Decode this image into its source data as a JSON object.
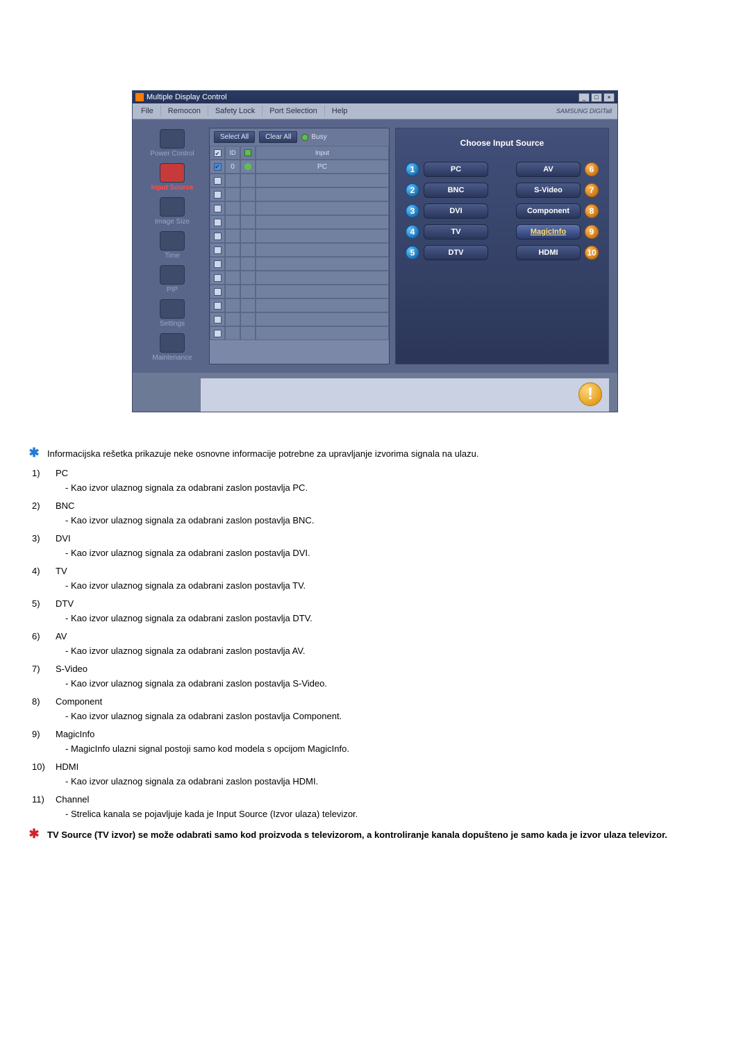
{
  "window": {
    "title": "Multiple Display Control",
    "brand": "SAMSUNG DIGITall"
  },
  "menu": {
    "items": [
      "File",
      "Remocon",
      "Safety Lock",
      "Port Selection",
      "Help"
    ]
  },
  "leftnav": [
    {
      "label": "Power Control",
      "active": false
    },
    {
      "label": "Input Source",
      "active": true
    },
    {
      "label": "Image Size",
      "active": false
    },
    {
      "label": "Time",
      "active": false
    },
    {
      "label": "PIP",
      "active": false
    },
    {
      "label": "Settings",
      "active": false
    },
    {
      "label": "Maintenance",
      "active": false
    }
  ],
  "mid": {
    "select_all": "Select All",
    "clear_all": "Clear All",
    "busy": "Busy",
    "head": {
      "id": "ID",
      "input": "Input"
    },
    "rows": [
      {
        "checked": true,
        "id": "0",
        "status": "green",
        "input": "PC"
      },
      {
        "checked": false,
        "id": "",
        "status": "",
        "input": ""
      },
      {
        "checked": false,
        "id": "",
        "status": "",
        "input": ""
      },
      {
        "checked": false,
        "id": "",
        "status": "",
        "input": ""
      },
      {
        "checked": false,
        "id": "",
        "status": "",
        "input": ""
      },
      {
        "checked": false,
        "id": "",
        "status": "",
        "input": ""
      },
      {
        "checked": false,
        "id": "",
        "status": "",
        "input": ""
      },
      {
        "checked": false,
        "id": "",
        "status": "",
        "input": ""
      },
      {
        "checked": false,
        "id": "",
        "status": "",
        "input": ""
      },
      {
        "checked": false,
        "id": "",
        "status": "",
        "input": ""
      },
      {
        "checked": false,
        "id": "",
        "status": "",
        "input": ""
      },
      {
        "checked": false,
        "id": "",
        "status": "",
        "input": ""
      },
      {
        "checked": false,
        "id": "",
        "status": "",
        "input": ""
      }
    ]
  },
  "right": {
    "title": "Choose Input Source",
    "sources_left": [
      {
        "n": "1",
        "label": "PC"
      },
      {
        "n": "2",
        "label": "BNC"
      },
      {
        "n": "3",
        "label": "DVI"
      },
      {
        "n": "4",
        "label": "TV"
      },
      {
        "n": "5",
        "label": "DTV"
      }
    ],
    "sources_right": [
      {
        "n": "6",
        "label": "AV"
      },
      {
        "n": "7",
        "label": "S-Video"
      },
      {
        "n": "8",
        "label": "Component"
      },
      {
        "n": "9",
        "label": "MagicInfo",
        "magic": true
      },
      {
        "n": "10",
        "label": "HDMI"
      }
    ]
  },
  "doc": {
    "intro": "Informacijska rešetka prikazuje neke osnovne informacije potrebne za upravljanje izvorima signala na ulazu.",
    "items": [
      {
        "n": "1)",
        "head": "PC",
        "sub": "- Kao izvor ulaznog signala za odabrani zaslon postavlja PC."
      },
      {
        "n": "2)",
        "head": "BNC",
        "sub": "- Kao izvor ulaznog signala za odabrani zaslon postavlja BNC."
      },
      {
        "n": "3)",
        "head": "DVI",
        "sub": "- Kao izvor ulaznog signala za odabrani zaslon postavlja DVI."
      },
      {
        "n": "4)",
        "head": "TV",
        "sub": "- Kao izvor ulaznog signala za odabrani zaslon postavlja TV."
      },
      {
        "n": "5)",
        "head": "DTV",
        "sub": "- Kao izvor ulaznog signala za odabrani zaslon postavlja DTV."
      },
      {
        "n": "6)",
        "head": "AV",
        "sub": "- Kao izvor ulaznog signala za odabrani zaslon postavlja AV."
      },
      {
        "n": "7)",
        "head": "S-Video",
        "sub": "- Kao izvor ulaznog signala za odabrani zaslon postavlja S-Video."
      },
      {
        "n": "8)",
        "head": "Component",
        "sub": "- Kao izvor ulaznog signala za odabrani zaslon postavlja Component."
      },
      {
        "n": "9)",
        "head": "MagicInfo",
        "sub": "- MagicInfo ulazni signal postoji samo kod modela s opcijom MagicInfo."
      },
      {
        "n": "10)",
        "head": "HDMI",
        "sub": "- Kao izvor ulaznog signala za odabrani zaslon postavlja HDMI."
      },
      {
        "n": "11)",
        "head": "Channel",
        "sub": "- Strelica kanala se pojavljuje kada je Input Source (Izvor ulaza) televizor."
      }
    ],
    "note": "TV Source (TV izvor) se može odabrati samo kod proizvoda s televizorom, a kontroliranje kanala dopušteno je samo kada je izvor ulaza televizor."
  }
}
